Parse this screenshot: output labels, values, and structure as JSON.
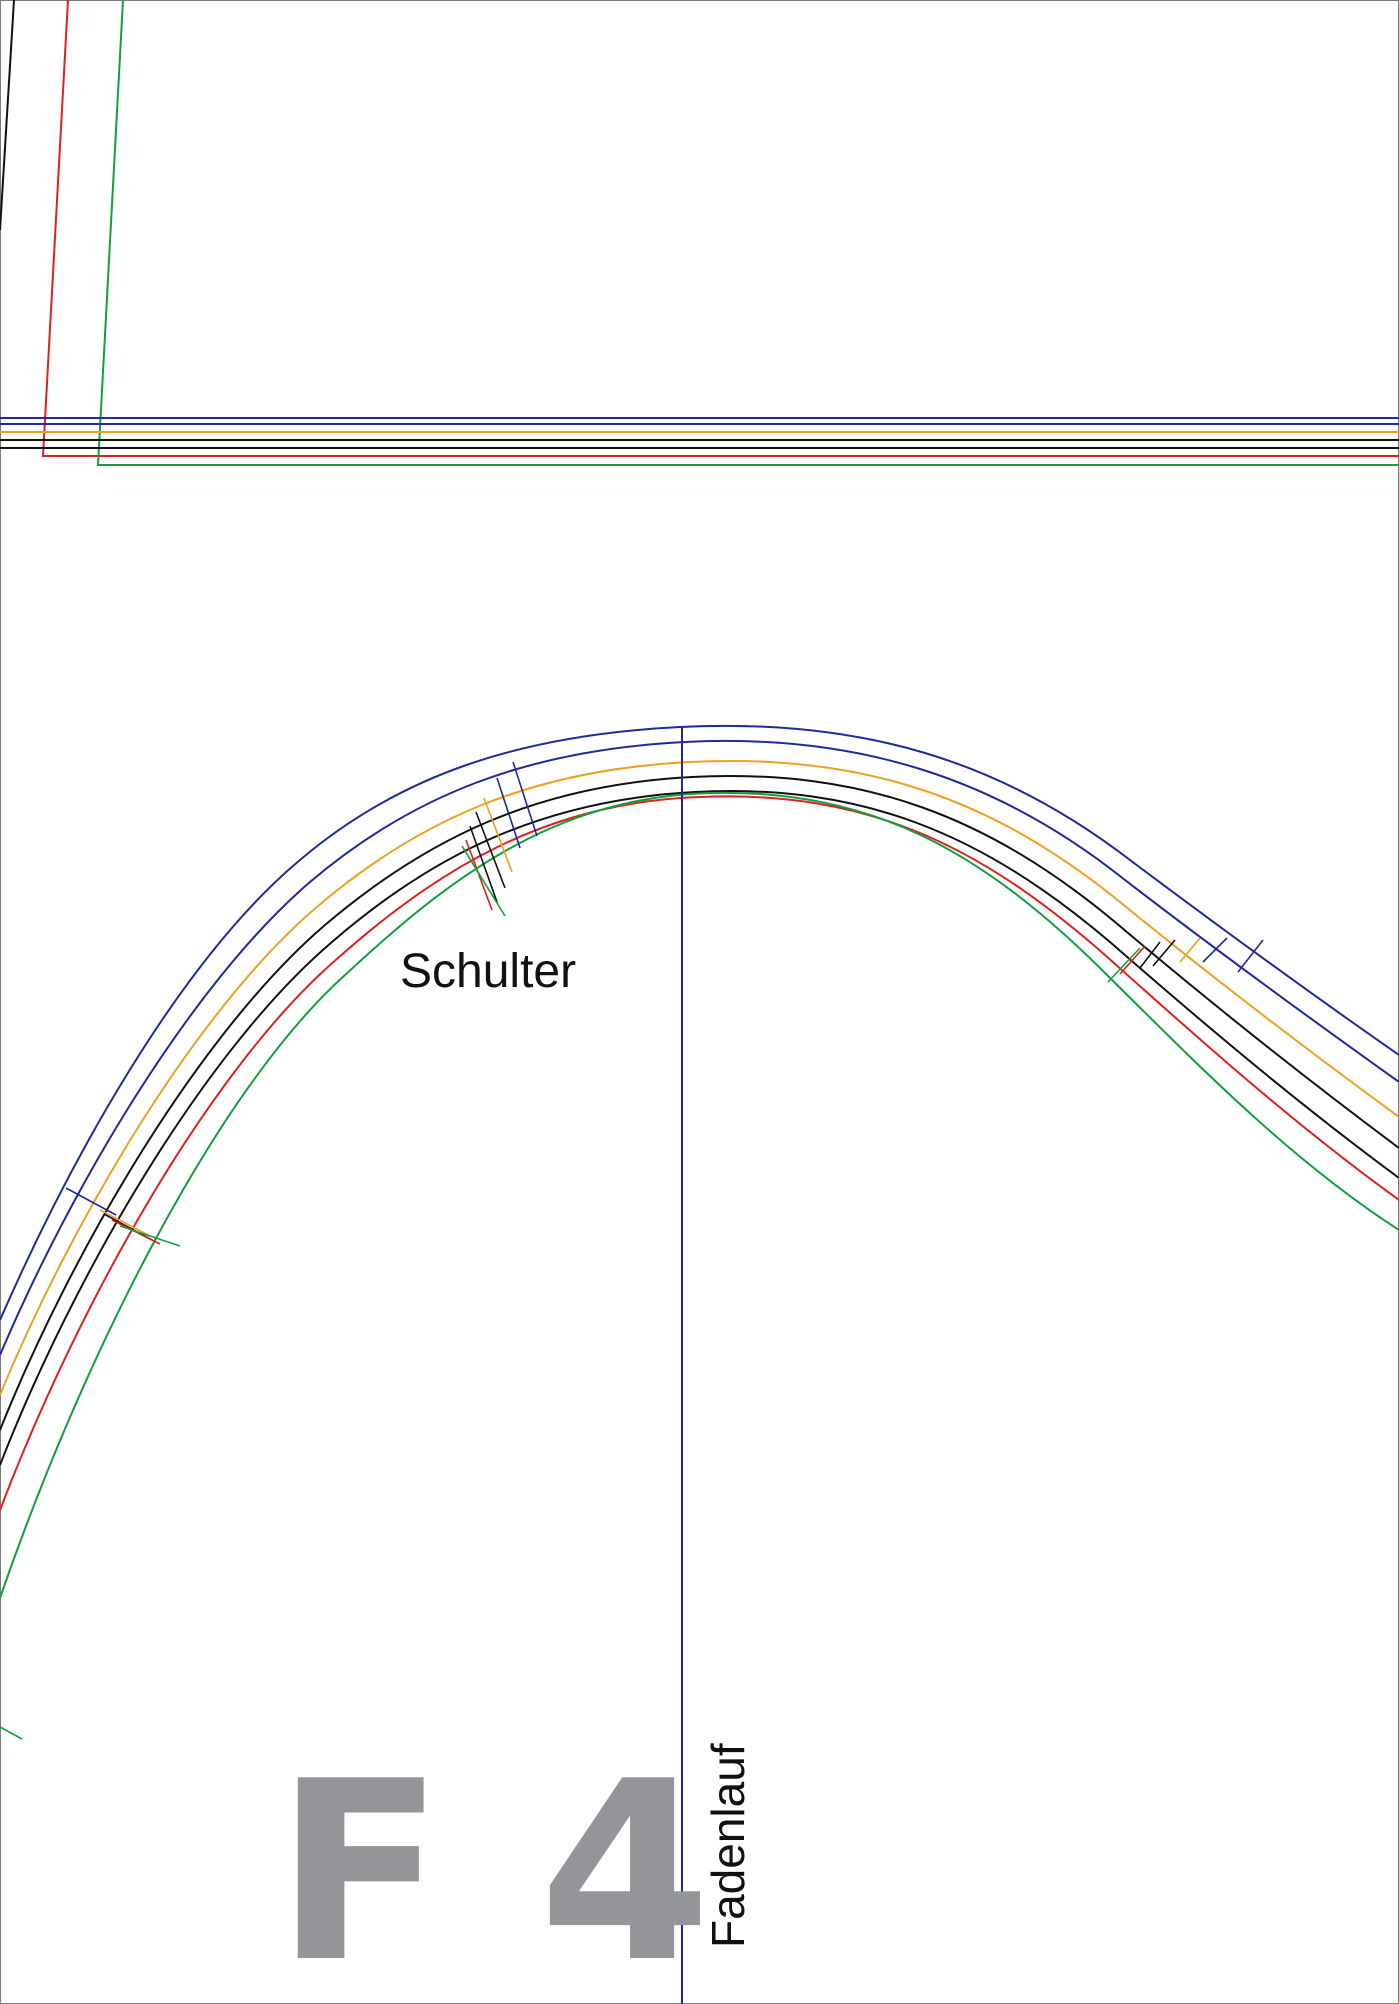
{
  "sheet": {
    "page_code": "F 4",
    "labels": {
      "shoulder": "Schulter",
      "grainline": "Fadenlauf"
    }
  },
  "colors": {
    "border": "#7a7a7a",
    "size_blue": "#1f2a9c",
    "size_orange": "#f0a020",
    "size_black": "#111111",
    "size_red": "#e02020",
    "size_green": "#10a040",
    "grainline": "#1f2a9c",
    "page_code": "#939598"
  }
}
